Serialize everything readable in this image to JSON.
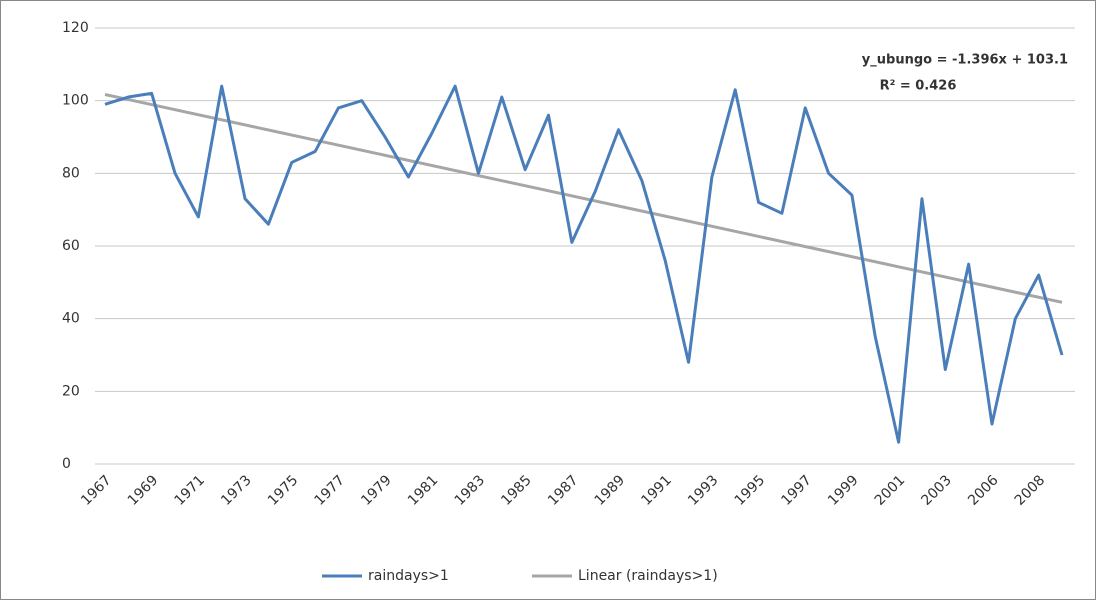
{
  "chart_data": {
    "type": "line",
    "categories": [
      "1967",
      null,
      "1969",
      null,
      "1971",
      null,
      "1973",
      null,
      "1975",
      null,
      "1977",
      null,
      "1979",
      null,
      "1981",
      null,
      "1983",
      null,
      "1985",
      null,
      "1987",
      null,
      "1989",
      null,
      "1991",
      null,
      "1993",
      null,
      "1995",
      null,
      "1997",
      null,
      "1999",
      null,
      "2001",
      null,
      "2003",
      null,
      "2006",
      null,
      "2008",
      null
    ],
    "series": [
      {
        "name": "raindays>1",
        "color": "#4a7ebb",
        "values": [
          99,
          101,
          102,
          80,
          68,
          104,
          73,
          66,
          83,
          86,
          98,
          100,
          90,
          79,
          91,
          104,
          80,
          101,
          81,
          96,
          61,
          75,
          92,
          78,
          56,
          28,
          79,
          103,
          72,
          69,
          98,
          80,
          74,
          35,
          6,
          73,
          26,
          55,
          11,
          40,
          52,
          30
        ]
      }
    ],
    "trendline": {
      "name": "Linear (raindays>1)",
      "color": "#a6a6a6",
      "values": [
        101.7,
        44.5
      ]
    },
    "annotations": [
      "y_ubungo = -1.396x + 103.1",
      "R² = 0.426"
    ],
    "ylim": [
      0,
      120
    ],
    "yticks": [
      0,
      20,
      40,
      60,
      80,
      100,
      120
    ],
    "grid": true,
    "legend": "bottom"
  }
}
